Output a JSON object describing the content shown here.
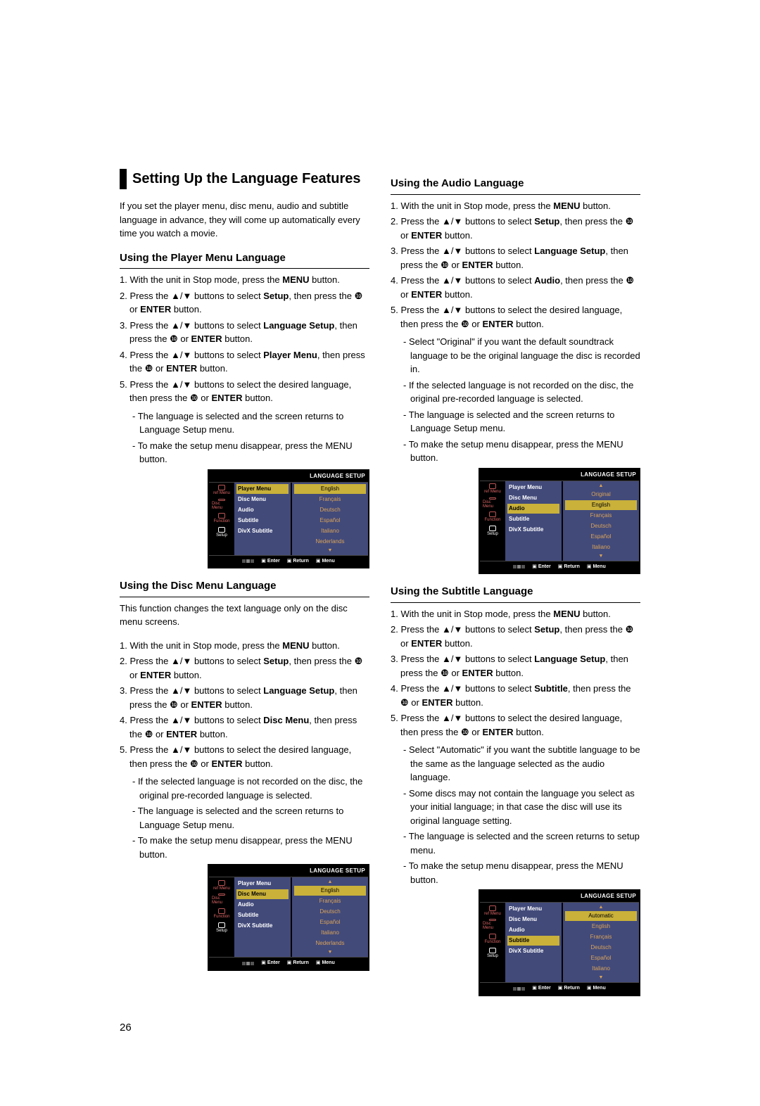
{
  "page_number": "26",
  "main_title": "Setting Up the Language Features",
  "intro": "If you set the player menu, disc menu, audio and subtitle language in advance, they will come up automatically every time you watch a movie.",
  "glyphs": {
    "up": "▲",
    "down": "▼",
    "right": "❿",
    "slash": "/"
  },
  "osd_common": {
    "title": "LANGUAGE SETUP",
    "left_icons": [
      "ref Menu",
      "Disc Menu",
      "Function",
      "Setup"
    ],
    "mid_items": [
      "Player Menu",
      "Disc Menu",
      "Audio",
      "Subtitle",
      "DivX Subtitle"
    ],
    "foot": [
      "Enter",
      "Return",
      "Menu"
    ]
  },
  "sections": {
    "player_menu": {
      "heading": "Using the Player Menu Language",
      "steps": [
        {
          "n": "1.",
          "pre": "With the unit in Stop mode, press the ",
          "b1": "MENU",
          "post": " button."
        },
        {
          "n": "2.",
          "pre": "Press the ",
          "arrows": true,
          "mid": " buttons to select ",
          "b1": "Setup",
          "mid2": ", then press the ",
          "right": true,
          "post2": " or ",
          "b2": "ENTER",
          "post": " button."
        },
        {
          "n": "3.",
          "pre": "Press the ",
          "arrows": true,
          "mid": " buttons to select ",
          "b1": "Language Setup",
          "mid2": ", then press the ",
          "right": true,
          "post2": " or ",
          "b2": "ENTER",
          "post": " button."
        },
        {
          "n": "4.",
          "pre": "Press the ",
          "arrows": true,
          "mid": " buttons to select ",
          "b1": "Player Menu",
          "mid2": ", then press the ",
          "right": true,
          "post2": " or ",
          "b2": "ENTER",
          "post": " button."
        },
        {
          "n": "5.",
          "pre": "Press the ",
          "arrows": true,
          "mid": " buttons to select the desired language, then press the ",
          "right": true,
          "post2": " or ",
          "b2": "ENTER",
          "post": " button."
        }
      ],
      "notes": [
        "- The language is selected and the screen returns to Language Setup menu.",
        "- To make the setup menu disappear, press the MENU button."
      ],
      "osd": {
        "highlight_mid": 0,
        "right_items": [
          "English",
          "Français",
          "Deutsch",
          "Español",
          "Italiano",
          "Nederlands"
        ],
        "sel": 0,
        "tri_top": false,
        "tri_bot": true
      }
    },
    "disc_menu": {
      "heading": "Using the Disc Menu Language",
      "intro": "This function changes the text language only on the disc menu screens.",
      "steps": [
        {
          "n": "1.",
          "pre": "With the unit in Stop mode, press the ",
          "b1": "MENU",
          "post": " button."
        },
        {
          "n": "2.",
          "pre": "Press the ",
          "arrows": true,
          "mid": " buttons to select ",
          "b1": "Setup",
          "mid2": ", then press the ",
          "right": true,
          "post2": " or ",
          "b2": "ENTER",
          "post": " button."
        },
        {
          "n": "3.",
          "pre": "Press the ",
          "arrows": true,
          "mid": " buttons to select ",
          "b1": "Language Setup",
          "mid2": ", then press the ",
          "right": true,
          "post2": " or ",
          "b2": "ENTER",
          "post": " button."
        },
        {
          "n": "4.",
          "pre": "Press the  ",
          "arrows": true,
          "mid": " buttons to select ",
          "b1": "Disc Menu",
          "mid2": ", then press the ",
          "right": true,
          "post2": " or ",
          "b2": "ENTER",
          "post": "  button."
        },
        {
          "n": "5.",
          "pre": "Press the ",
          "arrows": true,
          "mid": " buttons to select the desired      language, then press the ",
          "right": true,
          "post2": " or ",
          "b2": "ENTER",
          "post": " button."
        }
      ],
      "notes": [
        "- If the selected language is not recorded on  the disc, the original pre-recorded language is selected.",
        "- The language is selected and the screen returns to Language Setup menu.",
        "- To make the setup menu disappear, press the MENU button."
      ],
      "osd": {
        "highlight_mid": 1,
        "right_items": [
          "English",
          "Français",
          "Deutsch",
          "Español",
          "Italiano",
          "Nederlands"
        ],
        "sel": 0,
        "tri_top": true,
        "tri_bot": true
      }
    },
    "audio": {
      "heading": "Using the Audio Language",
      "steps": [
        {
          "n": "1.",
          "pre": "With the unit in Stop mode, press the ",
          "b1": "MENU",
          "post": " button."
        },
        {
          "n": "2.",
          "pre": "Press the ",
          "arrows": true,
          "mid": " buttons to select ",
          "b1": "Setup",
          "mid2": ", then press the ",
          "right": true,
          "post2": " or ",
          "b2": "ENTER",
          "post": " button."
        },
        {
          "n": "3.",
          "pre": "Press the ",
          "arrows": true,
          "mid": " buttons to select ",
          "b1": "Language Setup",
          "mid2": ", then press the ",
          "right": true,
          "post2": " or ",
          "b2": "ENTER",
          "post": " button."
        },
        {
          "n": "4.",
          "pre": "Press the ",
          "arrows": true,
          "mid": " buttons to select ",
          "b1": "Audio",
          "mid2": ", then press the ",
          "right": true,
          "post2": " or ",
          "b2": "ENTER",
          "post": " button."
        },
        {
          "n": "5.",
          "pre": "Press the ",
          "arrows": true,
          "mid": " buttons to select the desired language, then press the ",
          "right": true,
          "post2": " or ",
          "b2": "ENTER",
          "post": " button."
        }
      ],
      "notes": [
        "- Select \"Original\" if you want the default soundtrack language to be the original language the disc is recorded in.",
        "- If the selected language is not recorded on the disc, the original pre-recorded language is selected.",
        "- The language is selected and the screen returns to Language Setup menu.",
        "- To make the setup menu disappear, press the MENU button."
      ],
      "osd": {
        "highlight_mid": 2,
        "right_items": [
          "Original",
          "English",
          "Français",
          "Deutsch",
          "Español",
          "Italiano"
        ],
        "sel": 1,
        "tri_top": true,
        "tri_bot": true
      }
    },
    "subtitle": {
      "heading": "Using the Subtitle Language",
      "steps": [
        {
          "n": "1.",
          "pre": "With the unit in Stop mode, press the ",
          "b1": "MENU",
          "post": " button."
        },
        {
          "n": "2.",
          "pre": "Press the ",
          "arrows": true,
          "mid": " buttons to select ",
          "b1": "Setup",
          "mid2": ", then press the ",
          "right": true,
          "post2": " or ",
          "b2": "ENTER",
          "post": " button."
        },
        {
          "n": "3.",
          "pre": "Press the ",
          "arrows": true,
          "mid": " buttons to select ",
          "b1": "Language Setup",
          "mid2": ", then press the ",
          "right": true,
          "post2": " or ",
          "b2": "ENTER",
          "post": " button."
        },
        {
          "n": "4.",
          "pre": "Press the ",
          "arrows": true,
          "mid": " buttons to select ",
          "b1": "Subtitle",
          "mid2": ", then press the ",
          "right": true,
          "post2": " or ",
          "b2": "ENTER",
          "post": " button."
        },
        {
          "n": "5.",
          "pre": "Press the ",
          "arrows": true,
          "mid": " buttons to select the desired  language, then press the ",
          "right": true,
          "post2": " or ",
          "b2": "ENTER",
          "post": " button."
        }
      ],
      "notes": [
        "- Select \"Automatic\" if you want the subtitle  language to be the same as the language selected as the audio language.",
        "- Some discs may not contain the language you select as your initial language; in that case the disc will use its original language setting.",
        "- The language is selected and the screen returns to setup menu.",
        "- To make the setup menu disappear, press the MENU button."
      ],
      "osd": {
        "highlight_mid": 3,
        "right_items": [
          "Automatic",
          "English",
          "Français",
          "Deutsch",
          "Español",
          "Italiano"
        ],
        "sel": 0,
        "tri_top": true,
        "tri_bot": true
      }
    }
  }
}
